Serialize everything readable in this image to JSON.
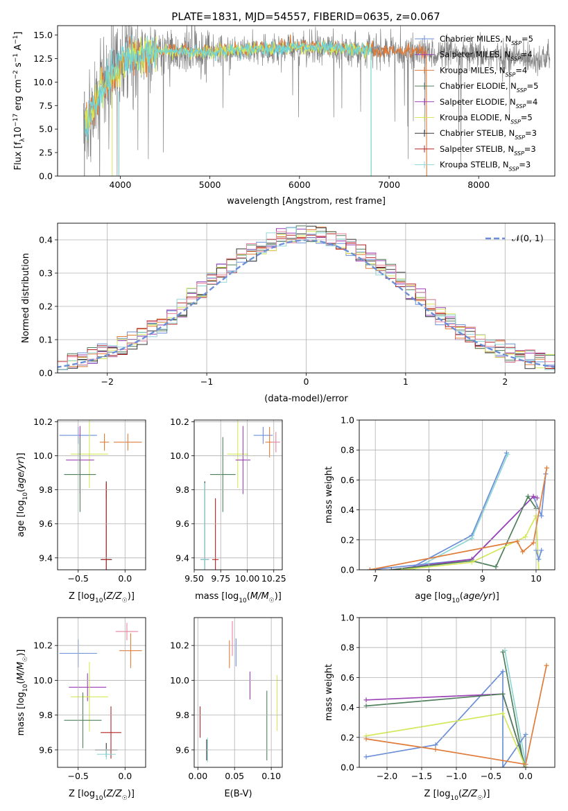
{
  "figure_title": "PLATE=1831, MJD=54557, FIBERID=0635, z=0.067",
  "colors": {
    "chabrier_miles": "#6a8fd8",
    "salpeter_miles": "#9b3fb5",
    "kroupa_miles": "#e07b39",
    "chabrier_elodie": "#4f7f5a",
    "salpeter_elodie": "#9b3fb5",
    "kroupa_elodie": "#d4e85a",
    "chabrier_stelib": "#333333",
    "salpeter_stelib": "#b22222",
    "kroupa_stelib": "#8fd6d6",
    "pink": "#e8829e",
    "data": "#808080",
    "model": "#6fd3da",
    "gauss": "#6a8fd8",
    "grid": "#b0b0b0"
  },
  "chart_data": [
    {
      "id": "spectrum",
      "type": "line",
      "title": "PLATE=1831, MJD=54557, FIBERID=0635, z=0.067",
      "xlabel": "wavelength [Angstrom, rest frame]",
      "ylabel": "Flux [f_λ 10^-17 erg cm^-2 s^-1 A^-1]",
      "xlim": [
        3300,
        8850
      ],
      "ylim": [
        0,
        16
      ],
      "xticks": [
        "4000",
        "5000",
        "6000",
        "7000",
        "8000"
      ],
      "yticks": [
        "0.0",
        "2.5",
        "5.0",
        "7.5",
        "10.0",
        "12.5",
        "15.0"
      ],
      "legend": [
        {
          "name": "Chabrier MILES, N",
          "sub": "SSP",
          "tail": "=5"
        },
        {
          "name": "Salpeter MILES, N",
          "sub": "SSP",
          "tail": "=4"
        },
        {
          "name": "Kroupa MILES, N",
          "sub": "SSP",
          "tail": "=4"
        },
        {
          "name": "Chabrier ELODIE, N",
          "sub": "SSP",
          "tail": "=5"
        },
        {
          "name": "Salpeter ELODIE, N",
          "sub": "SSP",
          "tail": "=4"
        },
        {
          "name": "Kroupa ELODIE, N",
          "sub": "SSP",
          "tail": "=5"
        },
        {
          "name": "Chabrier STELIB, N",
          "sub": "SSP",
          "tail": "=3"
        },
        {
          "name": "Salpeter STELIB, N",
          "sub": "SSP",
          "tail": "=3"
        },
        {
          "name": "Kroupa STELIB, N",
          "sub": "SSP",
          "tail": "=3"
        }
      ],
      "continuum_x": [
        3600,
        3700,
        3800,
        3900,
        4000,
        4100,
        4500,
        5000,
        5500,
        6000,
        6500,
        7000,
        7400,
        7800,
        8200,
        8700
      ],
      "continuum_y": [
        5.5,
        7.0,
        9.5,
        10.5,
        12.0,
        12.8,
        13.3,
        13.2,
        13.5,
        13.7,
        13.5,
        13.3,
        13.1,
        12.9,
        12.7,
        12.5
      ]
    },
    {
      "id": "residuals",
      "type": "bar",
      "xlabel": "(data-model)/error",
      "ylabel": "Normed distribution",
      "xlim": [
        -2.5,
        2.5
      ],
      "ylim": [
        0,
        0.45
      ],
      "xticks": [
        "−2",
        "−1",
        "0",
        "1",
        "2"
      ],
      "yticks": [
        "0.0",
        "0.1",
        "0.2",
        "0.3",
        "0.4"
      ],
      "legend": "𝒩(0, 1)",
      "bin_width": 0.1,
      "gaussian": {
        "mean": 0,
        "sigma": 1
      }
    },
    {
      "id": "age_vs_Z",
      "type": "scatter",
      "xlabel": "Z [log10(Z/Z☉)]",
      "ylabel": "age [log10(age/yr)]",
      "xlim": [
        -0.72,
        0.22
      ],
      "ylim": [
        9.33,
        10.21
      ],
      "xticks": [
        "−0.5",
        "0.0"
      ],
      "yticks": [
        "9.4",
        "9.6",
        "9.8",
        "10.0",
        "10.2"
      ],
      "points": [
        {
          "x": -0.5,
          "y": 10.12,
          "ex": 0.2,
          "ey": 0.05
        },
        {
          "x": -0.22,
          "y": 10.08,
          "ex": 0.05,
          "ey": 0.05
        },
        {
          "x": 0.03,
          "y": 10.08,
          "ex": 0.15,
          "ey": 0.05
        },
        {
          "x": -0.38,
          "y": 10.01,
          "ex": 0.2,
          "ey": 0.2
        },
        {
          "x": -0.48,
          "y": 9.975,
          "ex": 0.15,
          "ey": 0.2
        },
        {
          "x": -0.48,
          "y": 9.89,
          "ex": 0.17,
          "ey": 0.22
        },
        {
          "x": -0.2,
          "y": 9.39,
          "ex": 0.06,
          "ey": 0.46
        },
        {
          "x": -0.2,
          "y": 9.39,
          "ex": 0.02,
          "ey": 0.36
        },
        {
          "x": -0.2,
          "y": 9.39,
          "ex": 0.05,
          "ey": 0.45
        }
      ]
    },
    {
      "id": "age_vs_mass",
      "type": "scatter",
      "xlabel": "mass [log10(M/M☉)]",
      "ylabel": "",
      "xlim": [
        9.5,
        10.33
      ],
      "ylim": [
        9.33,
        10.21
      ],
      "xticks": [
        "9.50",
        "9.75",
        "10.00",
        "10.25"
      ],
      "yticks": [
        "9.4",
        "9.6",
        "9.8",
        "10.0",
        "10.2"
      ],
      "points": [
        {
          "x": 10.15,
          "y": 10.12,
          "ex": 0.09,
          "ey": 0.05
        },
        {
          "x": 10.21,
          "y": 10.08,
          "ex": 0.04,
          "ey": 0.09
        },
        {
          "x": 10.27,
          "y": 10.08,
          "ex": 0.04,
          "ey": 0.06
        },
        {
          "x": 9.91,
          "y": 10.01,
          "ex": 0.1,
          "ey": 0.2
        },
        {
          "x": 9.96,
          "y": 9.975,
          "ex": 0.07,
          "ey": 0.2
        },
        {
          "x": 9.77,
          "y": 9.89,
          "ex": 0.12,
          "ey": 0.22
        },
        {
          "x": 9.6,
          "y": 9.39,
          "ex": 0.04,
          "ey": 0.46
        },
        {
          "x": 9.7,
          "y": 9.39,
          "ex": 0.03,
          "ey": 0.36
        },
        {
          "x": 9.6,
          "y": 9.39,
          "ex": 0.04,
          "ey": 0.45
        }
      ]
    },
    {
      "id": "massweight_vs_age",
      "type": "line",
      "xlabel": "age [log10(age/yr)]",
      "ylabel": "mass weight",
      "xlim": [
        6.7,
        10.35
      ],
      "ylim": [
        0,
        1
      ],
      "xticks": [
        "7",
        "8",
        "9",
        "10"
      ],
      "yticks": [
        "0.0",
        "0.2",
        "0.4",
        "0.6",
        "0.8",
        "1.0"
      ],
      "series": [
        {
          "x": [
            7.6,
            8.8,
            9.45
          ],
          "y": [
            0.0,
            0.23,
            0.78
          ]
        },
        {
          "x": [
            7.7,
            8.8,
            9.47
          ],
          "y": [
            0.0,
            0.21,
            0.77
          ]
        },
        {
          "x": [
            6.9,
            8.8,
            9.95,
            10.1,
            10.18
          ],
          "y": [
            0.0,
            0.07,
            0.49,
            0.36,
            0.64
          ]
        },
        {
          "x": [
            7.3,
            8.8,
            9.95,
            10.02
          ],
          "y": [
            0.0,
            0.07,
            0.49,
            0.48
          ]
        },
        {
          "x": [
            7.3,
            8.8,
            9.25,
            9.85,
            10.0
          ],
          "y": [
            0.0,
            0.06,
            0.02,
            0.49,
            0.41
          ]
        },
        {
          "x": [
            7.5,
            8.8,
            9.8,
            10.0,
            10.05
          ],
          "y": [
            0.0,
            0.05,
            0.22,
            0.36,
            0.0
          ]
        },
        {
          "x": [
            6.9,
            9.65,
            9.75,
            9.95,
            10.2
          ],
          "y": [
            0.0,
            0.19,
            0.12,
            0.18,
            0.68
          ]
        },
        {
          "x": [
            10.0,
            10.05,
            10.1
          ],
          "y": [
            0.13,
            0.07,
            0.13
          ]
        }
      ]
    },
    {
      "id": "mass_vs_Z",
      "type": "scatter",
      "xlabel": "Z [log10(Z/Z☉)]",
      "ylabel": "mass [log10(M/M☉)]",
      "xlim": [
        -0.72,
        0.22
      ],
      "ylim": [
        9.5,
        10.36
      ],
      "xticks": [
        "−0.5",
        "0.0"
      ],
      "yticks": [
        "9.6",
        "9.8",
        "10.0",
        "10.2"
      ],
      "points": [
        {
          "x": 0.02,
          "y": 10.28,
          "ex": 0.12,
          "ey": 0.05
        },
        {
          "x": 0.06,
          "y": 10.17,
          "ex": 0.12,
          "ey": 0.1
        },
        {
          "x": -0.5,
          "y": 10.155,
          "ex": 0.2,
          "ey": 0.08
        },
        {
          "x": -0.4,
          "y": 9.96,
          "ex": 0.2,
          "ey": 0.08
        },
        {
          "x": -0.38,
          "y": 9.905,
          "ex": 0.2,
          "ey": 0.2
        },
        {
          "x": -0.45,
          "y": 9.77,
          "ex": 0.2,
          "ey": 0.16
        },
        {
          "x": -0.15,
          "y": 9.7,
          "ex": 0.11,
          "ey": 0.15
        },
        {
          "x": -0.2,
          "y": 9.6,
          "ex": 0.12,
          "ey": 0.04
        },
        {
          "x": -0.2,
          "y": 9.575,
          "ex": 0.1,
          "ey": 0.03
        }
      ]
    },
    {
      "id": "mass_vs_EBV",
      "type": "scatter",
      "xlabel": "E(B-V)",
      "ylabel": "",
      "xlim": [
        -0.005,
        0.115
      ],
      "ylim": [
        9.5,
        10.36
      ],
      "xticks": [
        "0.00",
        "0.05",
        "0.10"
      ],
      "yticks": [
        "9.6",
        "9.8",
        "10.0",
        "10.2"
      ],
      "points": [
        {
          "x": 0.047,
          "y": 10.24,
          "ey": 0.1
        },
        {
          "x": 0.052,
          "y": 10.16,
          "ey": 0.08
        },
        {
          "x": 0.043,
          "y": 10.15,
          "ey": 0.08
        },
        {
          "x": 0.071,
          "y": 9.97,
          "ey": 0.08
        },
        {
          "x": 0.108,
          "y": 9.87,
          "ey": 0.16
        },
        {
          "x": 0.094,
          "y": 9.74,
          "ey": 0.2
        },
        {
          "x": 0.003,
          "y": 9.76,
          "ey": 0.09
        },
        {
          "x": 0.013,
          "y": 9.6,
          "ey": 0.07
        },
        {
          "x": 0.012,
          "y": 9.6,
          "ey": 0.06
        }
      ]
    },
    {
      "id": "massweight_vs_Z",
      "type": "line",
      "xlabel": "Z [log10(Z/Z☉)]",
      "ylabel": "mass weight",
      "xlim": [
        -2.4,
        0.42
      ],
      "ylim": [
        0,
        1
      ],
      "xticks": [
        "−2.0",
        "−1.5",
        "−1.0",
        "−0.5",
        "0.0"
      ],
      "yticks": [
        "0.0",
        "0.2",
        "0.4",
        "0.6",
        "0.8",
        "1.0"
      ],
      "series": [
        {
          "x": [
            -0.3,
            0.0
          ],
          "y": [
            0.78,
            0.02
          ]
        },
        {
          "x": [
            -0.33,
            -0.02
          ],
          "y": [
            0.77,
            0.0
          ]
        },
        {
          "x": [
            -2.3,
            -1.3,
            -0.33,
            -0.33,
            0.0,
            0.0
          ],
          "y": [
            0.07,
            0.15,
            0.64,
            0.0,
            0.22,
            0.0
          ]
        },
        {
          "x": [
            -2.3,
            -0.33,
            0.0
          ],
          "y": [
            0.45,
            0.49,
            0.0
          ]
        },
        {
          "x": [
            -2.3,
            -0.33,
            0.0
          ],
          "y": [
            0.41,
            0.49,
            0.0
          ]
        },
        {
          "x": [
            -2.3,
            -0.33,
            0.0
          ],
          "y": [
            0.21,
            0.36,
            0.0
          ]
        },
        {
          "x": [
            -2.3,
            -1.3,
            0.0,
            0.3
          ],
          "y": [
            0.19,
            0.12,
            0.02,
            0.68
          ]
        }
      ]
    }
  ]
}
